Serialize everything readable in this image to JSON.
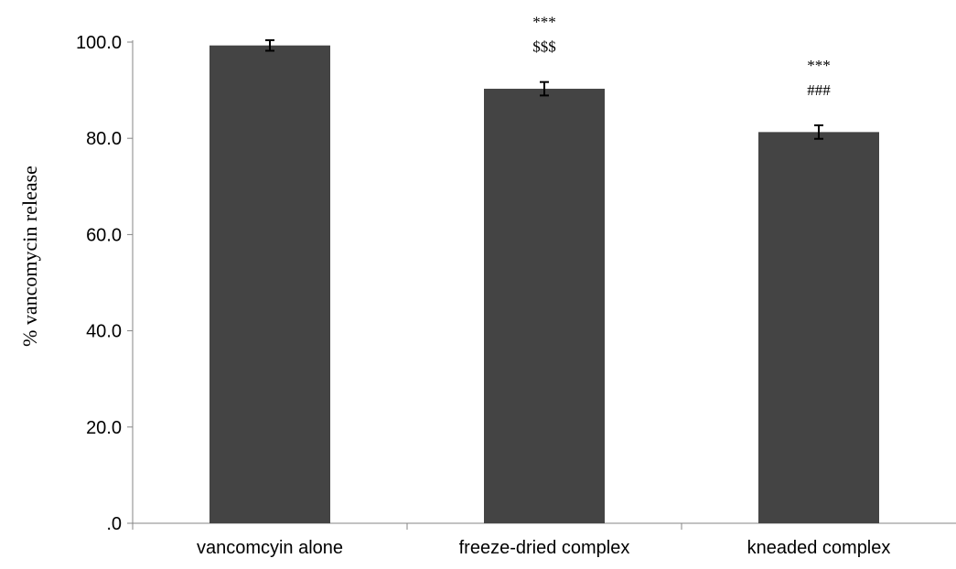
{
  "chart_data": {
    "type": "bar",
    "title": "",
    "xlabel": "",
    "ylabel": "% vancomycin release",
    "ylim": [
      0,
      100
    ],
    "yticks": [
      0,
      20,
      40,
      60,
      80,
      100
    ],
    "ytick_labels": [
      ".0",
      "20.0",
      "40.0",
      "60.0",
      "80.0",
      "100.0"
    ],
    "categories": [
      "vancomcyin alone",
      "freeze-dried complex",
      "kneaded complex"
    ],
    "values": [
      99.3,
      90.3,
      81.3
    ],
    "errors": [
      1.1,
      1.4,
      1.4
    ],
    "annotations": [
      [],
      [
        "***",
        "$$$"
      ],
      [
        "***",
        "###"
      ]
    ],
    "bar_color": "#444444",
    "grid": false,
    "legend": "none"
  }
}
